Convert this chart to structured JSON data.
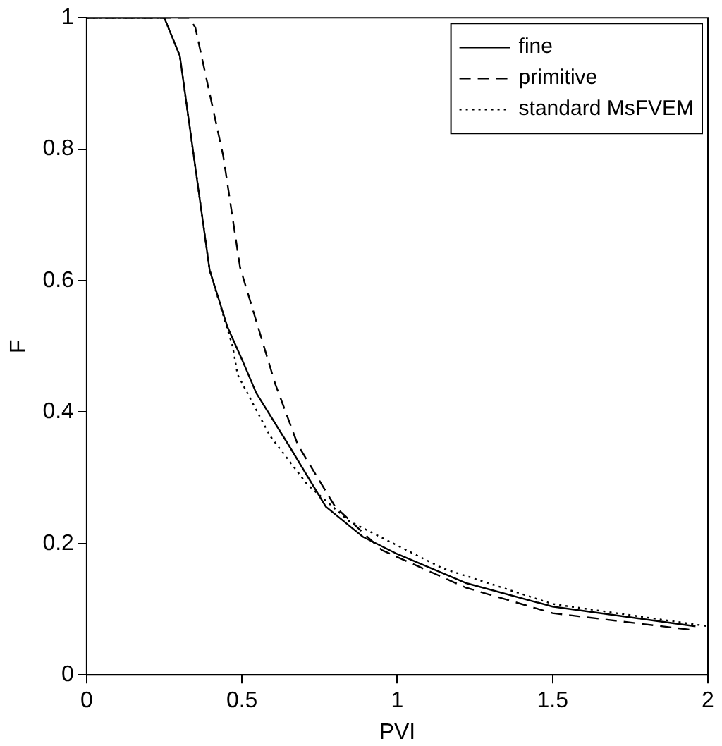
{
  "chart_data": {
    "type": "line",
    "xlabel": "PVI",
    "ylabel": "F",
    "xlim": [
      0,
      2
    ],
    "xticks": [
      0,
      0.5,
      1,
      1.5,
      2
    ],
    "ylim": [
      0,
      1
    ],
    "yticks": [
      0,
      0.2,
      0.4,
      0.6,
      0.8,
      1
    ],
    "grid": false,
    "legend": "top right",
    "marker": "none",
    "series": [
      {
        "name": "fine",
        "color": "#000000",
        "line_style": "solid",
        "x": [
          0,
          0.25,
          0.3,
          0.396,
          0.453,
          0.5,
          0.546,
          0.65,
          0.77,
          0.89,
          1.0,
          1.22,
          1.5,
          1.96
        ],
        "values": [
          1,
          1,
          0.942,
          0.616,
          0.53,
          0.48,
          0.429,
          0.35,
          0.256,
          0.21,
          0.184,
          0.14,
          0.104,
          0.074
        ]
      },
      {
        "name": "primitive",
        "color": "#000000",
        "line_style": "dashed",
        "x": [
          0,
          0.33,
          0.35,
          0.44,
          0.494,
          0.607,
          0.68,
          0.8,
          0.95,
          1.22,
          1.5,
          1.94
        ],
        "values": [
          1,
          1,
          0.985,
          0.789,
          0.62,
          0.443,
          0.35,
          0.256,
          0.19,
          0.133,
          0.094,
          0.069
        ]
      },
      {
        "name": "standard MsFVEM",
        "color": "#000000",
        "line_style": "dotted",
        "x": [
          0,
          0.25,
          0.3,
          0.396,
          0.47,
          0.486,
          0.59,
          0.71,
          0.845,
          1.147,
          1.5,
          2.0
        ],
        "values": [
          1,
          1,
          0.942,
          0.616,
          0.5,
          0.457,
          0.364,
          0.29,
          0.234,
          0.162,
          0.108,
          0.074
        ]
      }
    ]
  }
}
